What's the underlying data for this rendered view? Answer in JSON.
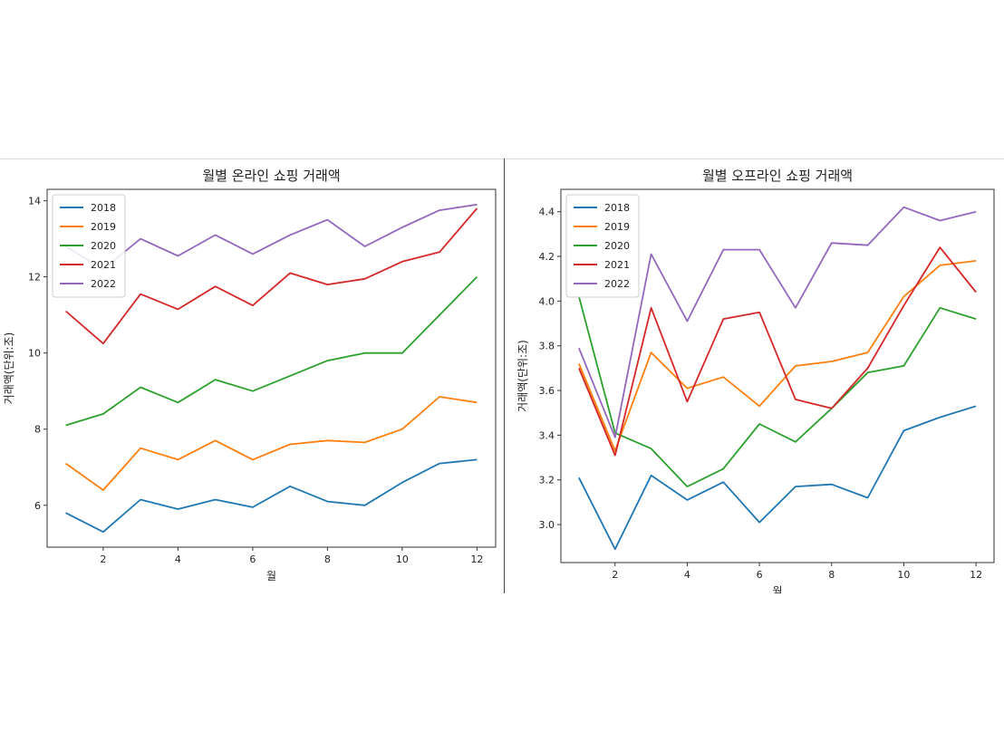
{
  "chart_data": [
    {
      "type": "line",
      "title": "월별 온라인 쇼핑 거래액",
      "xlabel": "월",
      "ylabel": "거래액(단위:조)",
      "xlim": [
        0.5,
        12.5
      ],
      "ylim": [
        4.9,
        14.3
      ],
      "xticks": [
        2,
        4,
        6,
        8,
        10,
        12
      ],
      "yticks": [
        6,
        8,
        10,
        12,
        14
      ],
      "x": [
        1,
        2,
        3,
        4,
        5,
        6,
        7,
        8,
        9,
        10,
        11,
        12
      ],
      "legend_position": "top-left",
      "series": [
        {
          "name": "2018",
          "color": "#1f77b4",
          "values": [
            5.8,
            5.3,
            6.15,
            5.9,
            6.15,
            5.95,
            6.5,
            6.1,
            6.0,
            6.6,
            7.1,
            7.2
          ]
        },
        {
          "name": "2019",
          "color": "#ff7f0e",
          "values": [
            7.1,
            6.4,
            7.5,
            7.2,
            7.7,
            7.2,
            7.6,
            7.7,
            7.65,
            8.0,
            8.85,
            8.7
          ]
        },
        {
          "name": "2020",
          "color": "#2ca02c",
          "values": [
            8.1,
            8.4,
            9.1,
            8.7,
            9.3,
            9.0,
            9.4,
            9.8,
            10.0,
            10.0,
            11.0,
            12.0
          ]
        },
        {
          "name": "2021",
          "color": "#d62728",
          "values": [
            11.1,
            10.25,
            11.55,
            11.15,
            11.75,
            11.25,
            12.1,
            11.8,
            11.95,
            12.4,
            12.65,
            13.8
          ]
        },
        {
          "name": "2022",
          "color": "#9467bd",
          "values": [
            12.8,
            12.2,
            13.0,
            12.55,
            13.1,
            12.6,
            13.1,
            13.5,
            12.8,
            13.3,
            13.75,
            13.9
          ]
        }
      ]
    },
    {
      "type": "line",
      "title": "월별 오프라인 쇼핑 거래액",
      "xlabel": "월",
      "ylabel": "거래액(단위:조)",
      "xlim": [
        0.5,
        12.5
      ],
      "ylim": [
        2.83,
        4.5
      ],
      "xticks": [
        2,
        4,
        6,
        8,
        10,
        12
      ],
      "yticks": [
        "3.0",
        "3.2",
        "3.4",
        "3.6",
        "3.8",
        "4.0",
        "4.2",
        "4.4"
      ],
      "x": [
        1,
        2,
        3,
        4,
        5,
        6,
        7,
        8,
        9,
        10,
        11,
        12
      ],
      "legend_position": "top-left",
      "series": [
        {
          "name": "2018",
          "color": "#1f77b4",
          "values": [
            3.21,
            2.89,
            3.22,
            3.11,
            3.19,
            3.01,
            3.17,
            3.18,
            3.12,
            3.42,
            3.48,
            3.53
          ]
        },
        {
          "name": "2019",
          "color": "#ff7f0e",
          "values": [
            3.72,
            3.33,
            3.77,
            3.61,
            3.66,
            3.53,
            3.71,
            3.73,
            3.77,
            4.02,
            4.16,
            4.18
          ]
        },
        {
          "name": "2020",
          "color": "#2ca02c",
          "values": [
            4.02,
            3.41,
            3.34,
            3.17,
            3.25,
            3.45,
            3.37,
            3.52,
            3.68,
            3.71,
            3.97,
            3.92
          ]
        },
        {
          "name": "2021",
          "color": "#d62728",
          "values": [
            3.7,
            3.31,
            3.97,
            3.55,
            3.92,
            3.95,
            3.56,
            3.52,
            3.7,
            3.98,
            4.24,
            4.04
          ]
        },
        {
          "name": "2022",
          "color": "#9467bd",
          "values": [
            3.79,
            3.39,
            4.21,
            3.91,
            4.23,
            4.23,
            3.97,
            4.26,
            4.25,
            4.42,
            4.36,
            4.4
          ]
        }
      ]
    }
  ]
}
